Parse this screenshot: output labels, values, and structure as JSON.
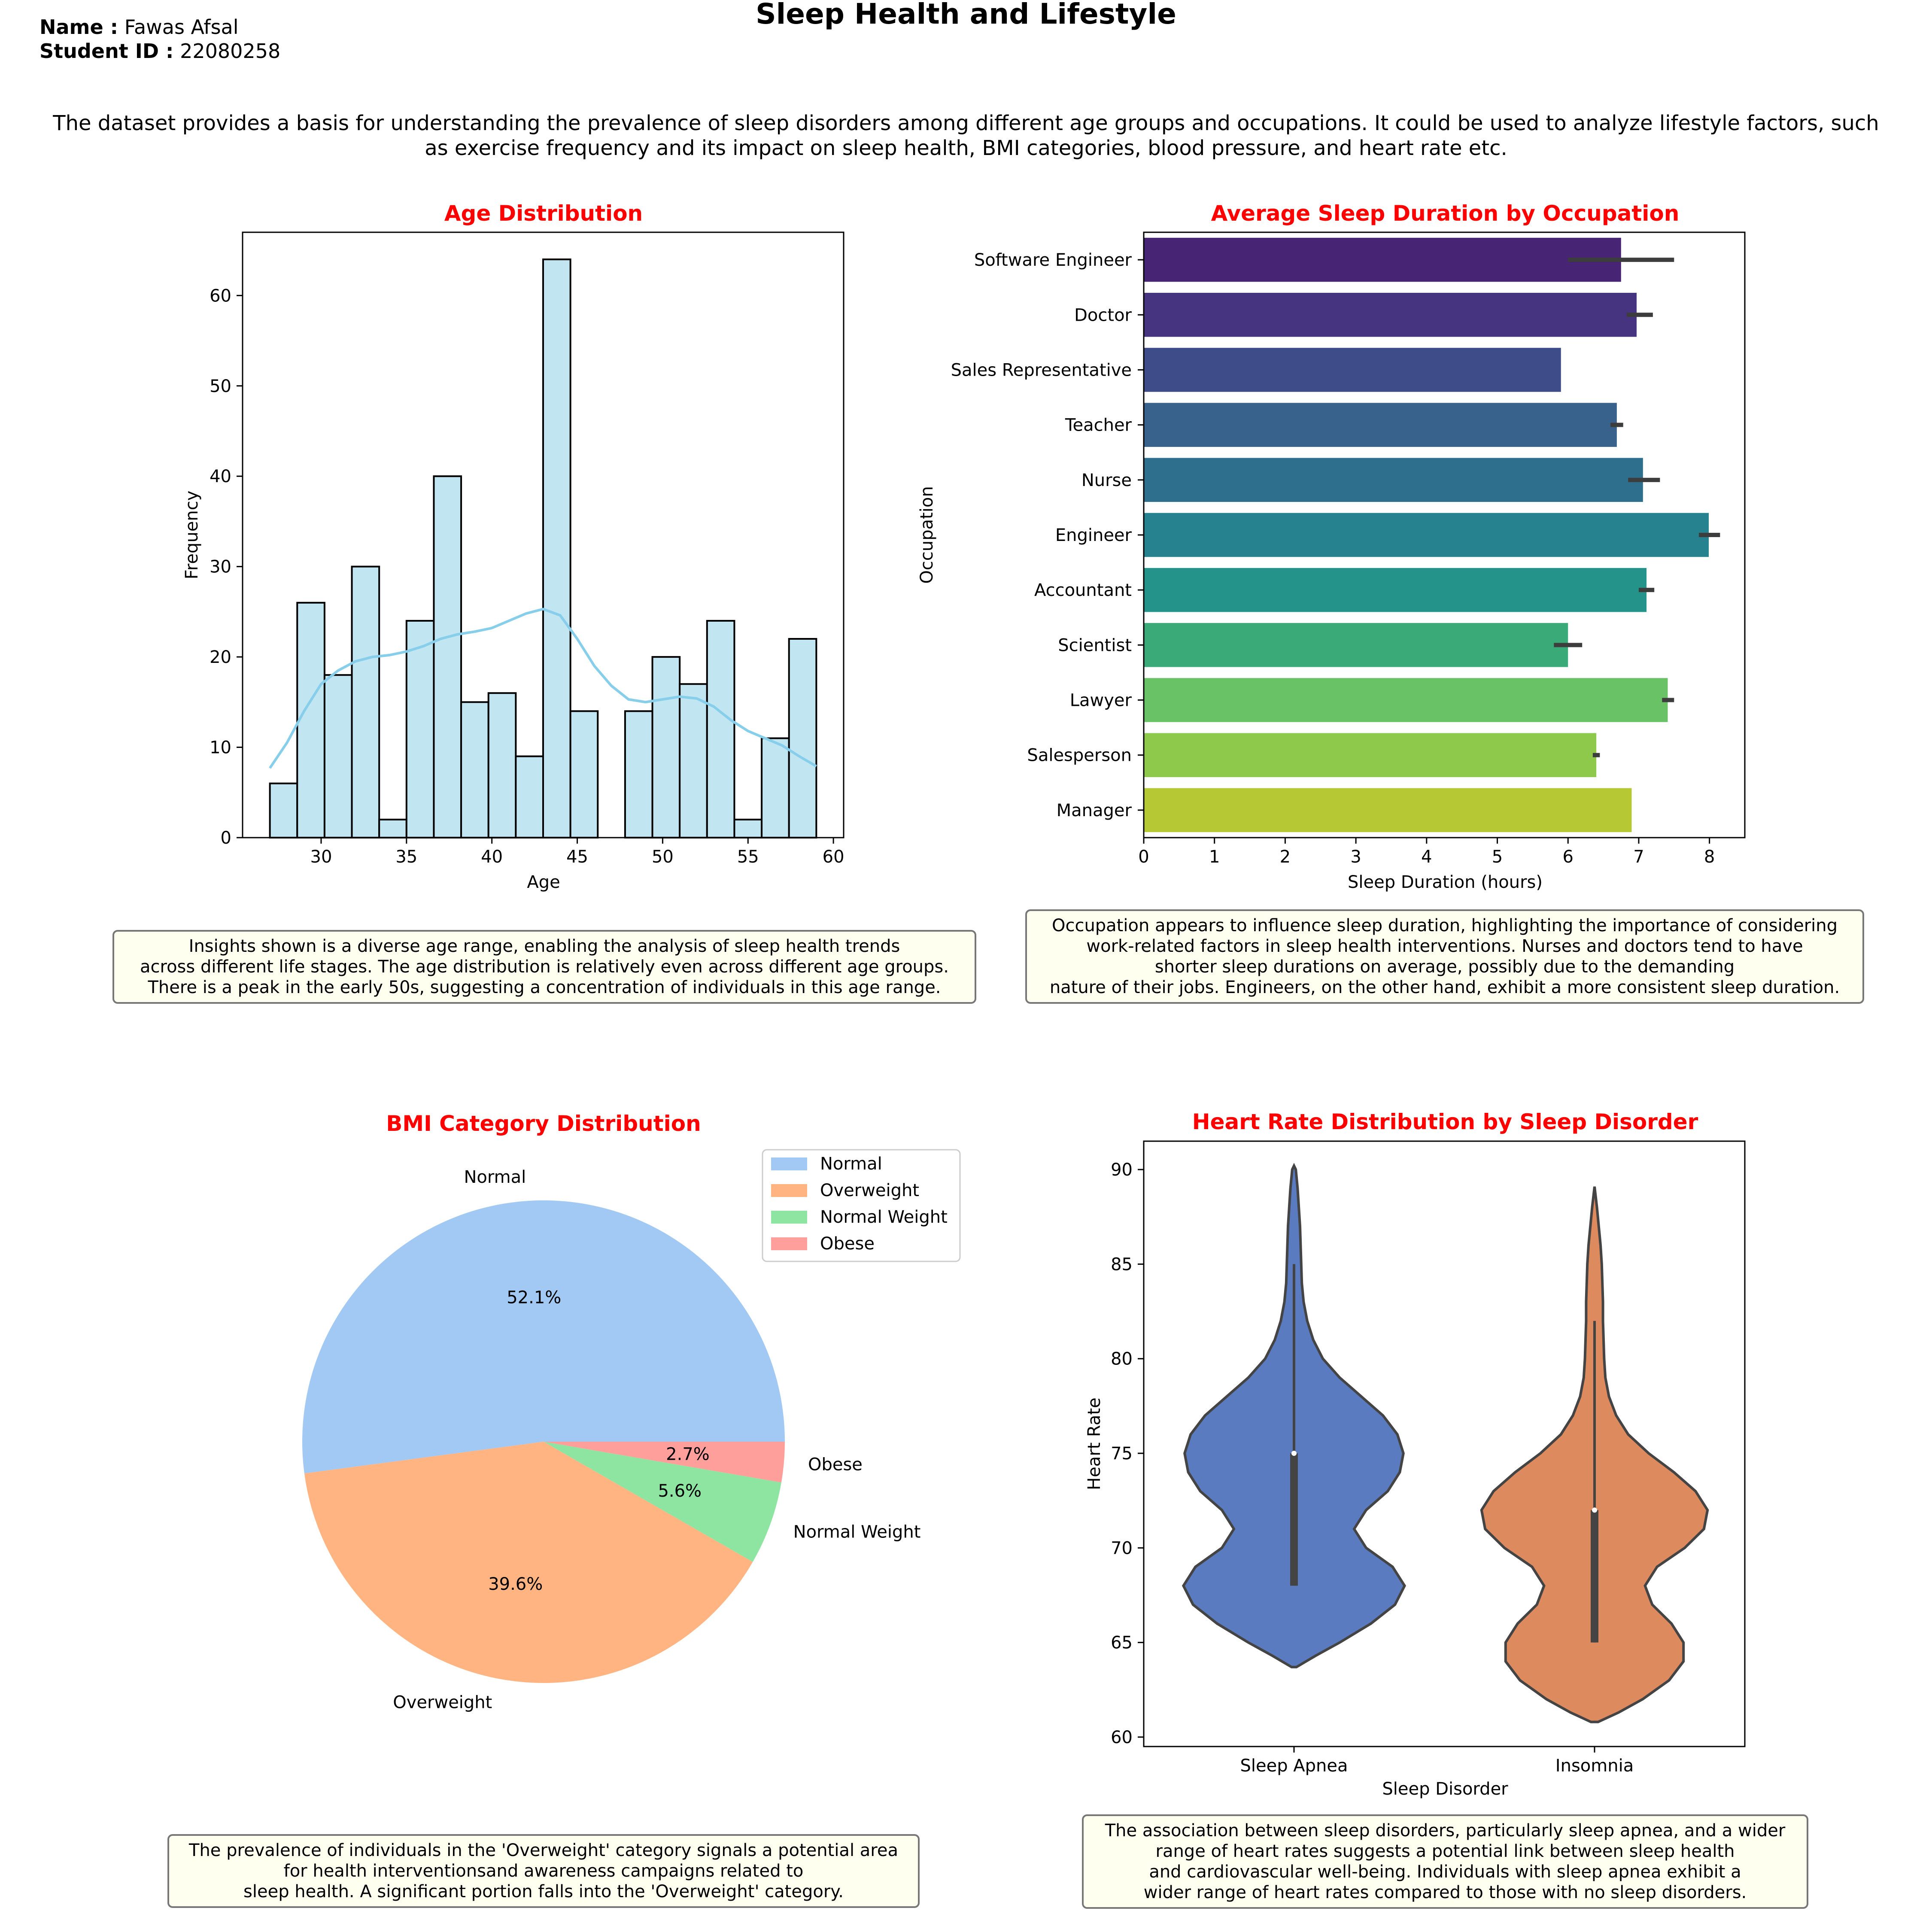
{
  "header": {
    "name_label": "Name :",
    "name_value": "Fawas Afsal",
    "id_label": "Student ID :",
    "id_value": "22080258",
    "title": "Sleep Health and Lifestyle",
    "intro_line1": "The dataset provides a basis for understanding the prevalence of sleep disorders among different age groups and occupations. It could be used to analyze lifestyle factors, such",
    "intro_line2": "as exercise frequency and its impact on sleep health, BMI categories, blood pressure, and heart rate etc."
  },
  "insights": {
    "age": "Insights shown is a diverse age range, enabling the analysis of sleep health trends\nacross different life stages. The age distribution is relatively even across different age groups.\nThere is a peak in the early 50s, suggesting a concentration of individuals in this age range.",
    "occupation": "Occupation appears to influence sleep duration, highlighting the importance of considering\nwork-related factors in sleep health interventions. Nurses and doctors tend to have\nshorter sleep durations on average, possibly due to the demanding\nnature of their jobs. Engineers, on the other hand, exhibit a more consistent sleep duration.",
    "bmi": "The prevalence of individuals in the 'Overweight' category signals a potential area\nfor health interventionsand awareness campaigns related to\nsleep health. A significant portion falls into the 'Overweight' category.",
    "heart": "The association between sleep disorders, particularly sleep apnea, and a wider\nrange of heart rates suggests a potential link between sleep health\nand cardiovascular well-being. Individuals with sleep apnea exhibit a\nwider range of heart rates compared to those with no sleep disorders."
  },
  "colors": {
    "title_red": "#ff0000",
    "hist_fill": "#c2e5f2",
    "kde_line": "#87ceeb",
    "pie": [
      "#a1c9f4",
      "#ffb482",
      "#8de5a1",
      "#ff9f9b"
    ],
    "violin": [
      "#5a7bc0",
      "#dd8a5e"
    ]
  },
  "chart_data": [
    {
      "type": "bar",
      "subtype": "histogram",
      "title": "Age Distribution",
      "xlabel": "Age",
      "ylabel": "Frequency",
      "xlim": [
        25.4,
        60.6
      ],
      "ylim": [
        0,
        67
      ],
      "xticks": [
        30,
        35,
        40,
        45,
        50,
        55,
        60
      ],
      "yticks": [
        0,
        10,
        20,
        30,
        40,
        50,
        60
      ],
      "bin_start": 27,
      "bin_width": 1.6,
      "values": [
        6,
        26,
        18,
        30,
        2,
        24,
        40,
        15,
        16,
        9,
        64,
        14,
        0,
        14,
        20,
        17,
        24,
        2,
        11,
        22
      ],
      "kde": {
        "x": [
          27,
          28,
          29,
          30,
          31,
          32,
          33,
          34,
          35,
          36,
          37,
          38,
          39,
          40,
          41,
          42,
          43,
          44,
          45,
          46,
          47,
          48,
          49,
          50,
          51,
          52,
          53,
          54,
          55,
          56,
          57,
          58,
          59
        ],
        "y": [
          7.7,
          10.5,
          14,
          17,
          18.5,
          19.5,
          20,
          20.2,
          20.6,
          21.2,
          22,
          22.5,
          22.8,
          23.2,
          24,
          24.8,
          25.3,
          24.6,
          22,
          19,
          16.8,
          15.3,
          15,
          15.3,
          15.6,
          15.4,
          14.5,
          13,
          11.8,
          11,
          10.2,
          9,
          7.9
        ]
      }
    },
    {
      "type": "bar",
      "orientation": "horizontal",
      "title": "Average Sleep Duration by Occupation",
      "xlabel": "Sleep Duration (hours)",
      "ylabel": "Occupation",
      "xlim": [
        0,
        8.5
      ],
      "xticks": [
        0,
        1,
        2,
        3,
        4,
        5,
        6,
        7,
        8
      ],
      "categories": [
        "Software Engineer",
        "Doctor",
        "Sales Representative",
        "Teacher",
        "Nurse",
        "Engineer",
        "Accountant",
        "Scientist",
        "Lawyer",
        "Salesperson",
        "Manager"
      ],
      "values": [
        6.75,
        6.97,
        5.9,
        6.69,
        7.06,
        7.99,
        7.11,
        6.0,
        7.41,
        6.4,
        6.9
      ],
      "ci_low": [
        6.0,
        6.83,
        5.9,
        6.6,
        6.85,
        7.85,
        7.0,
        5.8,
        7.33,
        6.35,
        6.9
      ],
      "ci_high": [
        7.5,
        7.2,
        5.9,
        6.78,
        7.3,
        8.15,
        7.22,
        6.2,
        7.5,
        6.45,
        6.9
      ],
      "colors": [
        "#482475",
        "#463480",
        "#3e4c8a",
        "#38618c",
        "#2f6f8e",
        "#26828e",
        "#24948a",
        "#3aaa78",
        "#6ac267",
        "#8fc94b",
        "#b6c935"
      ]
    },
    {
      "type": "pie",
      "title": "BMI Category Distribution",
      "labels": [
        "Normal",
        "Overweight",
        "Normal Weight",
        "Obese"
      ],
      "values": [
        52.1,
        39.6,
        5.6,
        2.7
      ],
      "pct_labels": [
        "52.1%",
        "39.6%",
        "5.6%",
        "2.7%"
      ],
      "legend": [
        "Normal",
        "Overweight",
        "Normal Weight",
        "Obese"
      ],
      "legend_position": "upper right"
    },
    {
      "type": "violin",
      "title": "Heart Rate Distribution by Sleep Disorder",
      "xlabel": "Sleep Disorder",
      "ylabel": "Heart Rate",
      "ylim": [
        59.5,
        91.5
      ],
      "yticks": [
        60,
        65,
        70,
        75,
        80,
        85,
        90
      ],
      "categories": [
        "Sleep Apnea",
        "Insomnia"
      ],
      "series": [
        {
          "name": "Sleep Apnea",
          "min": 68,
          "q1": 68,
          "median": 75,
          "q3": 75,
          "max": 85,
          "profile_y": [
            63.7,
            64.3,
            65,
            66,
            67,
            68,
            69,
            70,
            71,
            72,
            73,
            74,
            75,
            76,
            77,
            78,
            79,
            80,
            81,
            82,
            83,
            84,
            85,
            86,
            87,
            88,
            89,
            90,
            90.2
          ],
          "profile_w": [
            0.02,
            0.18,
            0.38,
            0.64,
            0.84,
            0.92,
            0.82,
            0.6,
            0.5,
            0.6,
            0.78,
            0.88,
            0.91,
            0.86,
            0.74,
            0.56,
            0.38,
            0.24,
            0.16,
            0.11,
            0.08,
            0.065,
            0.06,
            0.055,
            0.05,
            0.04,
            0.03,
            0.015,
            0
          ]
        },
        {
          "name": "Insomnia",
          "min": 65,
          "q1": 65,
          "median": 72,
          "q3": 72,
          "max": 82,
          "profile_y": [
            60.8,
            61.3,
            62,
            63,
            64,
            65,
            66,
            67,
            68,
            69,
            70,
            71,
            72,
            73,
            74,
            75,
            76,
            77,
            78,
            79,
            80,
            81,
            82,
            83,
            84,
            85,
            86,
            87,
            88,
            89.1
          ],
          "profile_w": [
            0.03,
            0.2,
            0.4,
            0.62,
            0.74,
            0.74,
            0.64,
            0.48,
            0.42,
            0.52,
            0.75,
            0.91,
            0.94,
            0.84,
            0.66,
            0.45,
            0.28,
            0.18,
            0.12,
            0.09,
            0.08,
            0.075,
            0.07,
            0.07,
            0.065,
            0.06,
            0.05,
            0.035,
            0.02,
            0
          ]
        }
      ]
    }
  ]
}
